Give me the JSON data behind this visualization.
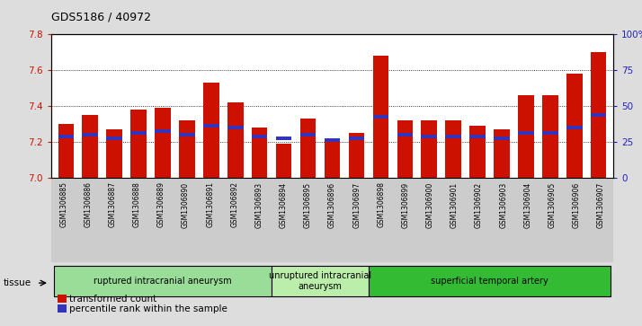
{
  "title": "GDS5186 / 40972",
  "samples": [
    "GSM1306885",
    "GSM1306886",
    "GSM1306887",
    "GSM1306888",
    "GSM1306889",
    "GSM1306890",
    "GSM1306891",
    "GSM1306892",
    "GSM1306893",
    "GSM1306894",
    "GSM1306895",
    "GSM1306896",
    "GSM1306897",
    "GSM1306898",
    "GSM1306899",
    "GSM1306900",
    "GSM1306901",
    "GSM1306902",
    "GSM1306903",
    "GSM1306904",
    "GSM1306905",
    "GSM1306906",
    "GSM1306907"
  ],
  "bar_values": [
    7.3,
    7.35,
    7.27,
    7.38,
    7.39,
    7.32,
    7.53,
    7.42,
    7.28,
    7.19,
    7.33,
    7.21,
    7.25,
    7.68,
    7.32,
    7.32,
    7.32,
    7.29,
    7.27,
    7.46,
    7.46,
    7.58,
    7.7
  ],
  "blue_marker_values": [
    7.23,
    7.24,
    7.22,
    7.25,
    7.26,
    7.24,
    7.29,
    7.28,
    7.23,
    7.22,
    7.24,
    7.21,
    7.22,
    7.34,
    7.24,
    7.23,
    7.23,
    7.23,
    7.22,
    7.25,
    7.25,
    7.28,
    7.35
  ],
  "groups": [
    {
      "label": "ruptured intracranial aneurysm",
      "start": 0,
      "end": 9,
      "color": "#99dd99"
    },
    {
      "label": "unruptured intracranial\naneurysm",
      "start": 9,
      "end": 13,
      "color": "#bbeeaa"
    },
    {
      "label": "superficial temporal artery",
      "start": 13,
      "end": 23,
      "color": "#33bb33"
    }
  ],
  "ymin": 7.0,
  "ymax": 7.8,
  "y2min": 0,
  "y2max": 100,
  "yticks": [
    7.0,
    7.2,
    7.4,
    7.6,
    7.8
  ],
  "y2ticks": [
    0,
    25,
    50,
    75,
    100
  ],
  "y2ticklabels": [
    "0",
    "25",
    "50",
    "75",
    "100%"
  ],
  "bar_color": "#cc1100",
  "blue_color": "#3333bb",
  "bg_color": "#dddddd",
  "plot_bg": "#ffffff",
  "tick_bg": "#cccccc",
  "legend_items": [
    {
      "label": "transformed count",
      "color": "#cc1100"
    },
    {
      "label": "percentile rank within the sample",
      "color": "#3333bb"
    }
  ]
}
